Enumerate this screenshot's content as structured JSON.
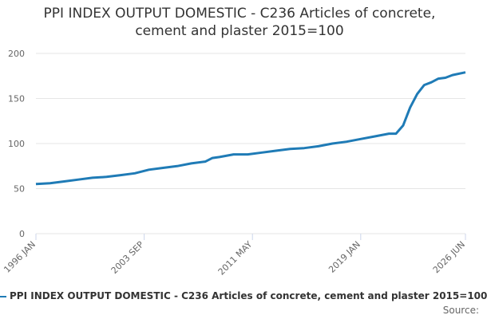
{
  "chart_data": {
    "type": "line",
    "title": "PPI INDEX OUTPUT DOMESTIC - C236 Articles of concrete, cement and plaster 2015=100",
    "source": "Source:",
    "x": [
      "1996 JAN",
      "1997 JAN",
      "1998 JAN",
      "1999 JAN",
      "2000 JAN",
      "2001 JAN",
      "2002 JAN",
      "2003 JAN",
      "2004 JAN",
      "2005 JAN",
      "2006 JAN",
      "2007 JAN",
      "2008 JAN",
      "2008 JUL",
      "2009 JAN",
      "2010 JAN",
      "2011 JAN",
      "2012 JAN",
      "2013 JAN",
      "2014 JAN",
      "2015 JAN",
      "2016 JAN",
      "2017 JAN",
      "2018 JAN",
      "2019 JAN",
      "2020 JAN",
      "2021 JAN",
      "2021 JUL",
      "2022 JAN",
      "2022 JUL",
      "2023 JAN",
      "2023 JUL",
      "2024 JAN",
      "2024 JUL",
      "2025 JAN",
      "2025 JUL",
      "2026 JUN"
    ],
    "series": [
      {
        "name": "PPI INDEX OUTPUT DOMESTIC - C236 Articles of concrete, cement and plaster 2015=100",
        "color": "#1f7bb6",
        "values": [
          55,
          56,
          58,
          60,
          62,
          63,
          65,
          67,
          71,
          73,
          75,
          78,
          80,
          84,
          85,
          88,
          88,
          90,
          92,
          94,
          95,
          97,
          100,
          102,
          105,
          108,
          111,
          111,
          120,
          140,
          155,
          165,
          168,
          172,
          173,
          176,
          179
        ]
      }
    ],
    "xlim": [
      "1996 JAN",
      "2026 JUN"
    ],
    "xticks": [
      "1996 JAN",
      "2003 SEP",
      "2011 MAY",
      "2019 JAN",
      "2026 JUN"
    ],
    "ylim": [
      0,
      200
    ],
    "yticks": [
      0,
      50,
      100,
      150,
      200
    ],
    "grid": true
  }
}
